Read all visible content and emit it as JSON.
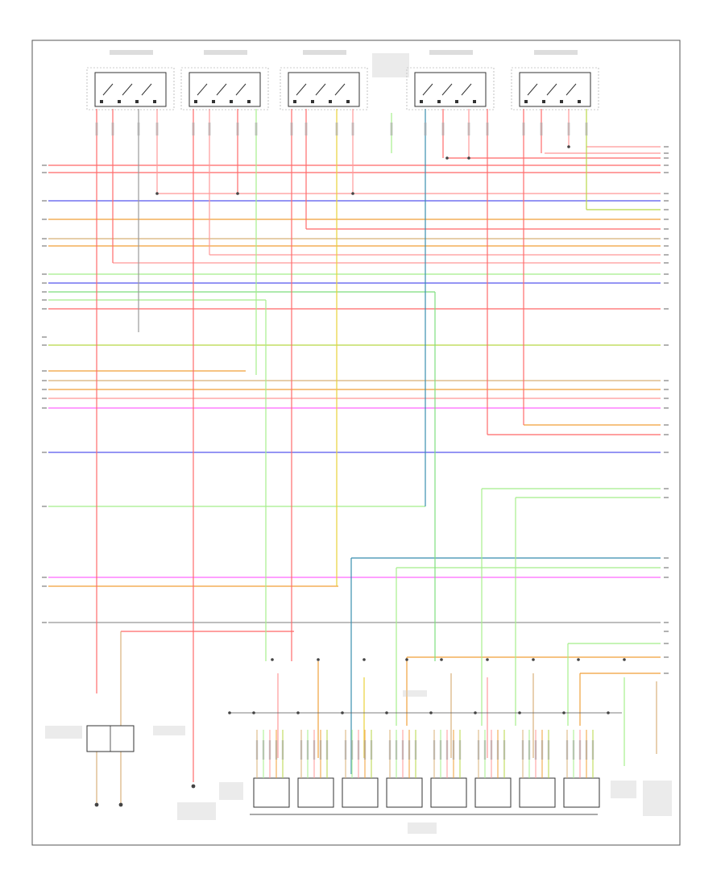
{
  "diagram": {
    "title": "",
    "page_code": "",
    "wire_colors": {
      "red": "#ff6b6b",
      "pink": "#ff9a9a",
      "blue": "#5a5aee",
      "orange": "#f2a23c",
      "tan": "#d9b27a",
      "green": "#7fe07f",
      "light_green": "#a6ef8c",
      "yellow_green": "#b9d84a",
      "yellow": "#e9d23a",
      "magenta": "#ff6bff",
      "teal": "#3a8fb0",
      "dark_red": "#e24b4b",
      "gray": "#9a9a9a"
    }
  }
}
